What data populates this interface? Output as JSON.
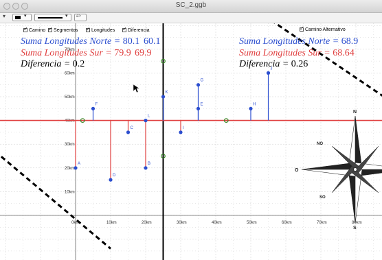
{
  "window": {
    "title": "SC_2.ggb"
  },
  "toolbar": {
    "line_style_label": "a>",
    "arrow": "▾"
  },
  "checkboxes": [
    {
      "label": "Camino",
      "checked": true
    },
    {
      "label": "Segmentos",
      "checked": true
    },
    {
      "label": "Longitudes",
      "checked": true
    },
    {
      "label": "Diferencia",
      "checked": true
    },
    {
      "label": "Camino Alternativo",
      "checked": true
    }
  ],
  "left_panel": {
    "north": {
      "label": "Suma Longitudes Norte = ",
      "value": "80.1",
      "overlap_value": "60.1"
    },
    "south": {
      "label": "Suma Longitudes Sur = ",
      "value": "79.9",
      "overlap_value": "69.9"
    },
    "diff": {
      "label": "Diferencia = ",
      "value": "0.2"
    }
  },
  "right_panel": {
    "north": {
      "label": "Suma Longitudes Norte = ",
      "value": "68.9"
    },
    "south": {
      "label": "Suma Longitudes Sur = ",
      "value": "68.64"
    },
    "diff": {
      "label": "Diferencia = ",
      "value": "0.26"
    }
  },
  "colors": {
    "blue": "#2b4ecf",
    "red": "#e04040",
    "green": "#3a8a2a",
    "grid": "#cfcfcf",
    "axis": "#000000"
  },
  "axes": {
    "x_labels": [
      "0km",
      "10km",
      "20km",
      "30km",
      "40km",
      "50km",
      "60km",
      "70km",
      "80km"
    ],
    "y_labels": [
      "70km",
      "60km",
      "50km",
      "40km",
      "30km",
      "20km",
      "10km"
    ],
    "x_values": [
      0,
      10,
      20,
      30,
      40,
      50,
      60,
      70,
      80
    ],
    "y_values": [
      70,
      60,
      50,
      40,
      30,
      20,
      10
    ]
  },
  "baseline_y_km": 40,
  "points": [
    {
      "name": "A",
      "x": 0,
      "y": 20,
      "side": "south"
    },
    {
      "name": "B",
      "x": 20,
      "y": 20,
      "side": "south"
    },
    {
      "name": "C",
      "x": 15,
      "y": 35,
      "side": "south"
    },
    {
      "name": "D",
      "x": 10,
      "y": 15,
      "side": "south"
    },
    {
      "name": "E",
      "x": 35,
      "y": 45,
      "side": "north"
    },
    {
      "name": "F",
      "x": 5,
      "y": 45,
      "side": "north"
    },
    {
      "name": "G",
      "x": 35,
      "y": 55,
      "side": "north"
    },
    {
      "name": "H",
      "x": 50,
      "y": 45,
      "side": "north"
    },
    {
      "name": "I",
      "x": 30,
      "y": 35,
      "side": "south"
    },
    {
      "name": "J",
      "x": 55,
      "y": 60,
      "side": "north"
    },
    {
      "name": "K",
      "x": 25,
      "y": 50,
      "side": "north"
    },
    {
      "name": "L",
      "x": 20,
      "y": 40,
      "side": "north"
    }
  ],
  "green_points": [
    {
      "x": 2,
      "y": 40
    },
    {
      "x": 25,
      "y": 65
    },
    {
      "x": 25,
      "y": 25
    },
    {
      "x": 43,
      "y": 40
    }
  ],
  "compass": {
    "labels": {
      "N": "N",
      "NO": "NO",
      "O": "O",
      "SO": "SO",
      "S": "S"
    }
  }
}
